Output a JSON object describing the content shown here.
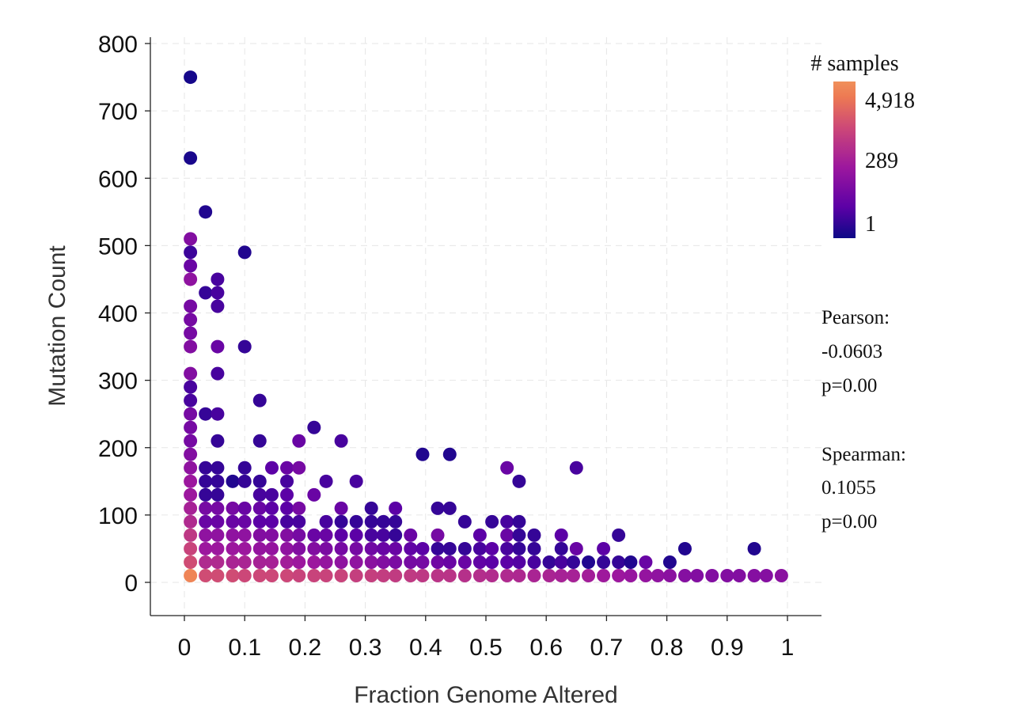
{
  "chart_data": {
    "type": "scatter",
    "xlabel": "Fraction Genome Altered",
    "ylabel": "Mutation Count",
    "xlim": [
      -0.06,
      1.055
    ],
    "ylim": [
      -50,
      810
    ],
    "x_ticks": [
      0,
      0.1,
      0.2,
      0.3,
      0.4,
      0.5,
      0.6,
      0.7,
      0.8,
      0.9,
      1
    ],
    "x_tick_labels": [
      "0",
      "0.1",
      "0.2",
      "0.3",
      "0.4",
      "0.5",
      "0.6",
      "0.7",
      "0.8",
      "0.9",
      "1"
    ],
    "y_ticks": [
      0,
      100,
      200,
      300,
      400,
      500,
      600,
      700,
      800
    ],
    "y_tick_labels": [
      "0",
      "100",
      "200",
      "300",
      "400",
      "500",
      "600",
      "700",
      "800"
    ],
    "grid": true,
    "legend": {
      "title": "# samples",
      "labels": [
        "4,918",
        "289",
        "1"
      ],
      "scale": "log",
      "colors": [
        "#0d0887",
        "#5c01a6",
        "#9c179e",
        "#cc4778",
        "#ed7953",
        "#f0905a"
      ]
    },
    "stats": {
      "pearson_label": "Pearson:",
      "pearson_value": "-0.0603",
      "pearson_p": "p=0.00",
      "spearman_label": "Spearman:",
      "spearman_value": "0.1055",
      "spearman_p": "p=0.00"
    },
    "points_note": "each point: [fraction genome altered, mutation count, relative sample density 0-1]",
    "points": [
      [
        0.01,
        750,
        0.02
      ],
      [
        0.01,
        630,
        0.03
      ],
      [
        0.035,
        550,
        0.05
      ],
      [
        0.01,
        510,
        0.35
      ],
      [
        0.01,
        490,
        0.12
      ],
      [
        0.01,
        470,
        0.25
      ],
      [
        0.01,
        450,
        0.4
      ],
      [
        0.01,
        410,
        0.3
      ],
      [
        0.01,
        390,
        0.3
      ],
      [
        0.01,
        370,
        0.3
      ],
      [
        0.01,
        350,
        0.35
      ],
      [
        0.01,
        310,
        0.35
      ],
      [
        0.01,
        290,
        0.15
      ],
      [
        0.01,
        270,
        0.15
      ],
      [
        0.01,
        250,
        0.3
      ],
      [
        0.01,
        230,
        0.3
      ],
      [
        0.01,
        210,
        0.3
      ],
      [
        0.01,
        190,
        0.35
      ],
      [
        0.01,
        170,
        0.4
      ],
      [
        0.01,
        150,
        0.45
      ],
      [
        0.01,
        130,
        0.45
      ],
      [
        0.01,
        110,
        0.5
      ],
      [
        0.01,
        90,
        0.55
      ],
      [
        0.01,
        70,
        0.62
      ],
      [
        0.01,
        50,
        0.68
      ],
      [
        0.01,
        30,
        0.72
      ],
      [
        0.01,
        10,
        0.95
      ],
      [
        0.1,
        490,
        0.05
      ],
      [
        0.055,
        450,
        0.15
      ],
      [
        0.035,
        430,
        0.1
      ],
      [
        0.055,
        430,
        0.15
      ],
      [
        0.055,
        410,
        0.15
      ],
      [
        0.055,
        350,
        0.25
      ],
      [
        0.1,
        350,
        0.1
      ],
      [
        0.055,
        310,
        0.15
      ],
      [
        0.125,
        270,
        0.1
      ],
      [
        0.035,
        250,
        0.1
      ],
      [
        0.055,
        250,
        0.15
      ],
      [
        0.055,
        210,
        0.1
      ],
      [
        0.125,
        210,
        0.1
      ],
      [
        0.19,
        210,
        0.25
      ],
      [
        0.215,
        230,
        0.1
      ],
      [
        0.26,
        210,
        0.15
      ],
      [
        0.035,
        170,
        0.1
      ],
      [
        0.055,
        170,
        0.1
      ],
      [
        0.1,
        170,
        0.1
      ],
      [
        0.145,
        170,
        0.2
      ],
      [
        0.17,
        170,
        0.25
      ],
      [
        0.19,
        170,
        0.3
      ],
      [
        0.395,
        190,
        0.05
      ],
      [
        0.44,
        190,
        0.05
      ],
      [
        0.535,
        170,
        0.25
      ],
      [
        0.65,
        170,
        0.15
      ],
      [
        0.035,
        150,
        0.1
      ],
      [
        0.055,
        150,
        0.1
      ],
      [
        0.08,
        150,
        0.05
      ],
      [
        0.1,
        150,
        0.1
      ],
      [
        0.125,
        150,
        0.1
      ],
      [
        0.17,
        150,
        0.15
      ],
      [
        0.235,
        150,
        0.15
      ],
      [
        0.285,
        150,
        0.15
      ],
      [
        0.555,
        150,
        0.1
      ],
      [
        0.035,
        130,
        0.1
      ],
      [
        0.055,
        130,
        0.1
      ],
      [
        0.125,
        130,
        0.15
      ],
      [
        0.145,
        130,
        0.15
      ],
      [
        0.17,
        130,
        0.2
      ],
      [
        0.215,
        130,
        0.25
      ],
      [
        0.035,
        110,
        0.3
      ],
      [
        0.055,
        110,
        0.3
      ],
      [
        0.08,
        110,
        0.3
      ],
      [
        0.1,
        110,
        0.25
      ],
      [
        0.125,
        110,
        0.25
      ],
      [
        0.145,
        110,
        0.2
      ],
      [
        0.17,
        110,
        0.2
      ],
      [
        0.19,
        110,
        0.3
      ],
      [
        0.26,
        110,
        0.25
      ],
      [
        0.31,
        110,
        0.1
      ],
      [
        0.35,
        110,
        0.2
      ],
      [
        0.42,
        110,
        0.1
      ],
      [
        0.44,
        110,
        0.1
      ],
      [
        0.035,
        90,
        0.25
      ],
      [
        0.055,
        90,
        0.25
      ],
      [
        0.08,
        90,
        0.25
      ],
      [
        0.1,
        90,
        0.25
      ],
      [
        0.125,
        90,
        0.2
      ],
      [
        0.145,
        90,
        0.2
      ],
      [
        0.17,
        90,
        0.15
      ],
      [
        0.19,
        90,
        0.15
      ],
      [
        0.235,
        90,
        0.15
      ],
      [
        0.26,
        90,
        0.1
      ],
      [
        0.285,
        90,
        0.1
      ],
      [
        0.31,
        90,
        0.1
      ],
      [
        0.33,
        90,
        0.1
      ],
      [
        0.35,
        90,
        0.1
      ],
      [
        0.465,
        90,
        0.1
      ],
      [
        0.51,
        90,
        0.1
      ],
      [
        0.535,
        90,
        0.15
      ],
      [
        0.555,
        90,
        0.1
      ],
      [
        0.035,
        70,
        0.4
      ],
      [
        0.055,
        70,
        0.4
      ],
      [
        0.08,
        70,
        0.4
      ],
      [
        0.1,
        70,
        0.4
      ],
      [
        0.125,
        70,
        0.35
      ],
      [
        0.145,
        70,
        0.35
      ],
      [
        0.17,
        70,
        0.35
      ],
      [
        0.19,
        70,
        0.3
      ],
      [
        0.215,
        70,
        0.25
      ],
      [
        0.235,
        70,
        0.25
      ],
      [
        0.26,
        70,
        0.2
      ],
      [
        0.285,
        70,
        0.2
      ],
      [
        0.31,
        70,
        0.15
      ],
      [
        0.33,
        70,
        0.15
      ],
      [
        0.35,
        70,
        0.1
      ],
      [
        0.375,
        70,
        0.25
      ],
      [
        0.42,
        70,
        0.3
      ],
      [
        0.49,
        70,
        0.2
      ],
      [
        0.535,
        70,
        0.25
      ],
      [
        0.555,
        70,
        0.1
      ],
      [
        0.58,
        70,
        0.1
      ],
      [
        0.625,
        70,
        0.2
      ],
      [
        0.72,
        70,
        0.1
      ],
      [
        0.035,
        50,
        0.45
      ],
      [
        0.055,
        50,
        0.45
      ],
      [
        0.08,
        50,
        0.45
      ],
      [
        0.1,
        50,
        0.45
      ],
      [
        0.125,
        50,
        0.42
      ],
      [
        0.145,
        50,
        0.42
      ],
      [
        0.17,
        50,
        0.4
      ],
      [
        0.19,
        50,
        0.35
      ],
      [
        0.215,
        50,
        0.35
      ],
      [
        0.235,
        50,
        0.32
      ],
      [
        0.26,
        50,
        0.3
      ],
      [
        0.285,
        50,
        0.3
      ],
      [
        0.31,
        50,
        0.28
      ],
      [
        0.33,
        50,
        0.25
      ],
      [
        0.35,
        50,
        0.25
      ],
      [
        0.375,
        50,
        0.22
      ],
      [
        0.395,
        50,
        0.2
      ],
      [
        0.42,
        50,
        0.1
      ],
      [
        0.44,
        50,
        0.1
      ],
      [
        0.465,
        50,
        0.1
      ],
      [
        0.49,
        50,
        0.15
      ],
      [
        0.51,
        50,
        0.2
      ],
      [
        0.535,
        50,
        0.15
      ],
      [
        0.555,
        50,
        0.1
      ],
      [
        0.58,
        50,
        0.1
      ],
      [
        0.625,
        50,
        0.1
      ],
      [
        0.65,
        50,
        0.25
      ],
      [
        0.695,
        50,
        0.2
      ],
      [
        0.83,
        50,
        0.05
      ],
      [
        0.945,
        50,
        0.05
      ],
      [
        0.035,
        30,
        0.55
      ],
      [
        0.055,
        30,
        0.55
      ],
      [
        0.08,
        30,
        0.52
      ],
      [
        0.1,
        30,
        0.52
      ],
      [
        0.125,
        30,
        0.5
      ],
      [
        0.145,
        30,
        0.5
      ],
      [
        0.17,
        30,
        0.48
      ],
      [
        0.19,
        30,
        0.45
      ],
      [
        0.215,
        30,
        0.45
      ],
      [
        0.235,
        30,
        0.42
      ],
      [
        0.26,
        30,
        0.4
      ],
      [
        0.285,
        30,
        0.4
      ],
      [
        0.31,
        30,
        0.38
      ],
      [
        0.33,
        30,
        0.35
      ],
      [
        0.35,
        30,
        0.32
      ],
      [
        0.375,
        30,
        0.3
      ],
      [
        0.395,
        30,
        0.3
      ],
      [
        0.42,
        30,
        0.28
      ],
      [
        0.44,
        30,
        0.25
      ],
      [
        0.465,
        30,
        0.25
      ],
      [
        0.49,
        30,
        0.22
      ],
      [
        0.51,
        30,
        0.2
      ],
      [
        0.535,
        30,
        0.2
      ],
      [
        0.555,
        30,
        0.18
      ],
      [
        0.58,
        30,
        0.15
      ],
      [
        0.605,
        30,
        0.1
      ],
      [
        0.625,
        30,
        0.15
      ],
      [
        0.645,
        30,
        0.1
      ],
      [
        0.67,
        30,
        0.05
      ],
      [
        0.695,
        30,
        0.1
      ],
      [
        0.72,
        30,
        0.1
      ],
      [
        0.74,
        30,
        0.05
      ],
      [
        0.765,
        30,
        0.25
      ],
      [
        0.805,
        30,
        0.05
      ],
      [
        0.035,
        10,
        0.72
      ],
      [
        0.055,
        10,
        0.72
      ],
      [
        0.08,
        10,
        0.72
      ],
      [
        0.1,
        10,
        0.7
      ],
      [
        0.125,
        10,
        0.7
      ],
      [
        0.145,
        10,
        0.7
      ],
      [
        0.17,
        10,
        0.7
      ],
      [
        0.19,
        10,
        0.68
      ],
      [
        0.215,
        10,
        0.68
      ],
      [
        0.235,
        10,
        0.68
      ],
      [
        0.26,
        10,
        0.68
      ],
      [
        0.285,
        10,
        0.66
      ],
      [
        0.31,
        10,
        0.66
      ],
      [
        0.33,
        10,
        0.65
      ],
      [
        0.35,
        10,
        0.64
      ],
      [
        0.375,
        10,
        0.63
      ],
      [
        0.395,
        10,
        0.62
      ],
      [
        0.42,
        10,
        0.6
      ],
      [
        0.44,
        10,
        0.6
      ],
      [
        0.465,
        10,
        0.58
      ],
      [
        0.49,
        10,
        0.57
      ],
      [
        0.51,
        10,
        0.56
      ],
      [
        0.535,
        10,
        0.55
      ],
      [
        0.555,
        10,
        0.54
      ],
      [
        0.58,
        10,
        0.52
      ],
      [
        0.605,
        10,
        0.52
      ],
      [
        0.625,
        10,
        0.5
      ],
      [
        0.645,
        10,
        0.5
      ],
      [
        0.67,
        10,
        0.48
      ],
      [
        0.695,
        10,
        0.46
      ],
      [
        0.72,
        10,
        0.45
      ],
      [
        0.74,
        10,
        0.43
      ],
      [
        0.765,
        10,
        0.42
      ],
      [
        0.785,
        10,
        0.4
      ],
      [
        0.805,
        10,
        0.38
      ],
      [
        0.83,
        10,
        0.36
      ],
      [
        0.85,
        10,
        0.35
      ],
      [
        0.875,
        10,
        0.35
      ],
      [
        0.9,
        10,
        0.35
      ],
      [
        0.92,
        10,
        0.35
      ],
      [
        0.945,
        10,
        0.36
      ],
      [
        0.965,
        10,
        0.36
      ],
      [
        0.99,
        10,
        0.38
      ]
    ]
  }
}
